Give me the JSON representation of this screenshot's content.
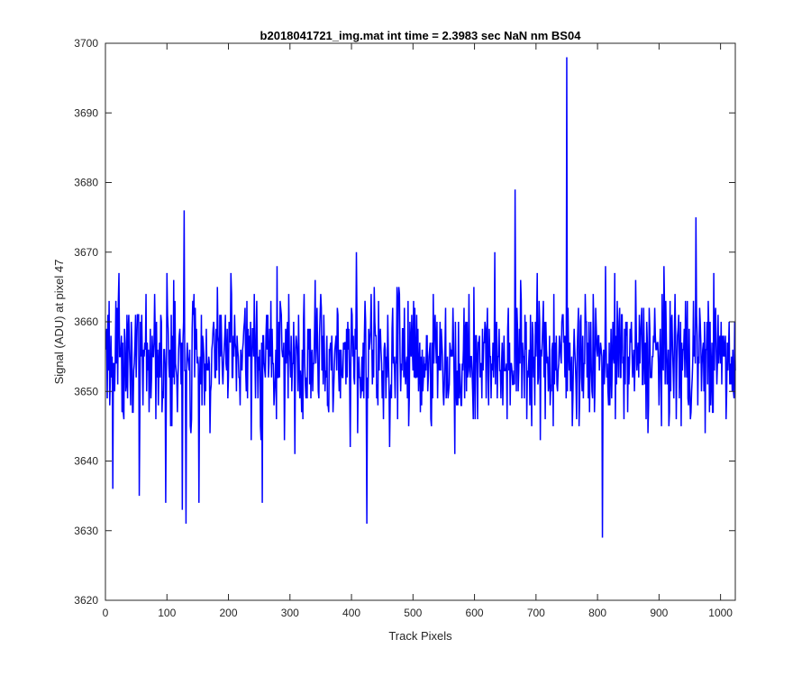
{
  "chart_data": {
    "type": "line",
    "title": "b2018041721_img.mat int time = 2.3983 sec  NaN nm BS04",
    "xlabel": "Track Pixels",
    "ylabel": "Signal (ADU) at pixel 47",
    "xlim": [
      0,
      1024
    ],
    "ylim": [
      3620,
      3700
    ],
    "xticks": [
      0,
      100,
      200,
      300,
      400,
      500,
      600,
      700,
      800,
      900,
      1000
    ],
    "yticks": [
      3620,
      3630,
      3640,
      3650,
      3660,
      3670,
      3680,
      3690,
      3700
    ],
    "grid": false,
    "legend": "none",
    "series": [
      {
        "color": "#0000ff",
        "x_start": 1,
        "x_step": 1,
        "n_points": 1024,
        "baseline": 3655,
        "noise_band": [
          3643,
          3667
        ],
        "notable_points": [
          {
            "x": 12,
            "y": 3636
          },
          {
            "x": 55,
            "y": 3635
          },
          {
            "x": 98,
            "y": 3634
          },
          {
            "x": 125,
            "y": 3633
          },
          {
            "x": 128,
            "y": 3676
          },
          {
            "x": 131,
            "y": 3631
          },
          {
            "x": 152,
            "y": 3634
          },
          {
            "x": 255,
            "y": 3634
          },
          {
            "x": 425,
            "y": 3631
          },
          {
            "x": 666,
            "y": 3679
          },
          {
            "x": 750,
            "y": 3698
          },
          {
            "x": 808,
            "y": 3629
          },
          {
            "x": 960,
            "y": 3675
          }
        ]
      }
    ]
  }
}
